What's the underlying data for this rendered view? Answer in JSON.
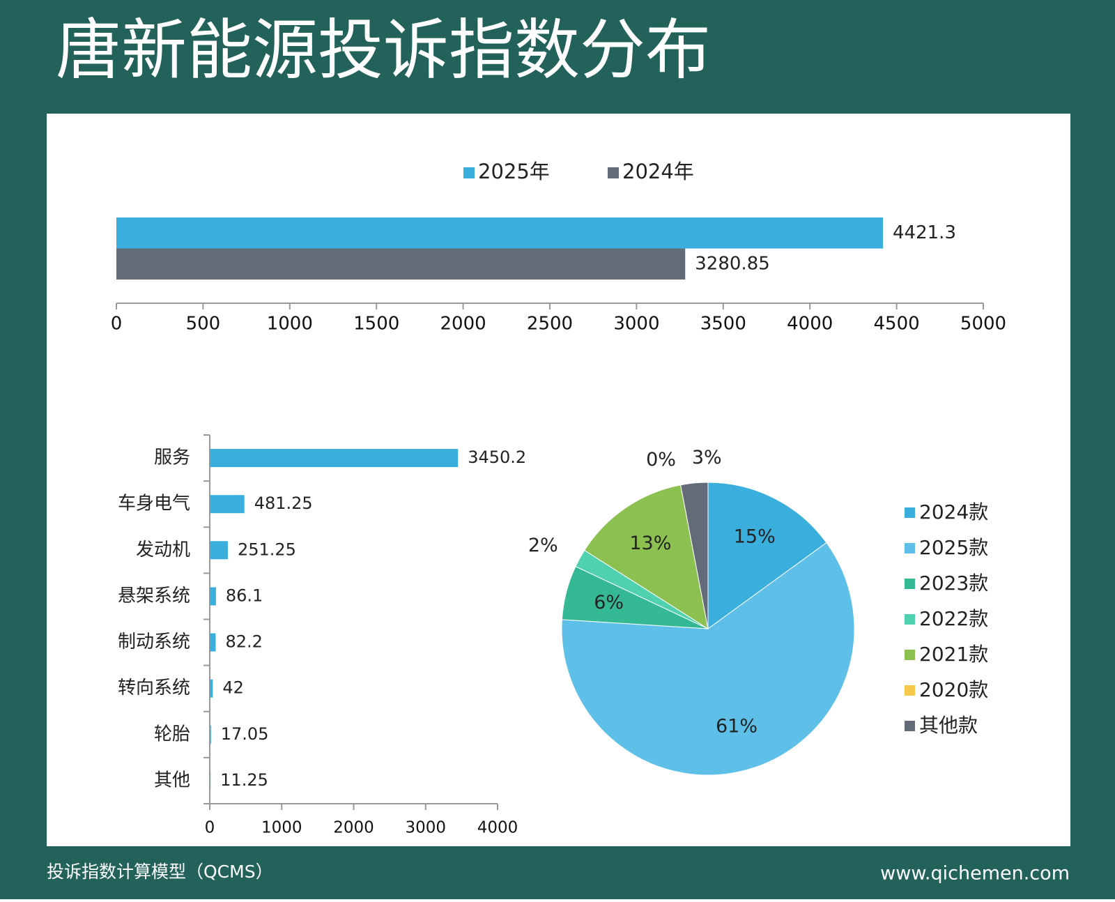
{
  "title": "唐新能源投诉指数分布",
  "footer": {
    "left": "投诉指数计算模型（QCMS）",
    "right": "www.qichemen.com"
  },
  "chart_data": [
    {
      "type": "bar",
      "orientation": "horizontal",
      "categories": [
        null
      ],
      "series": [
        {
          "name": "2025年",
          "color": "#3aaedc",
          "values": [
            4421.3
          ]
        },
        {
          "name": "2024年",
          "color": "#646b78",
          "values": [
            3280.85
          ]
        }
      ],
      "xlim": [
        0,
        5000
      ],
      "xticks": [
        0,
        500,
        1000,
        1500,
        2000,
        2500,
        3000,
        3500,
        4000,
        4500,
        5000
      ],
      "legend": "top"
    },
    {
      "type": "bar",
      "orientation": "horizontal",
      "categories": [
        "服务",
        "车身电气",
        "发动机",
        "悬架系统",
        "制动系统",
        "转向系统",
        "轮胎",
        "其他"
      ],
      "values": [
        3450.2,
        481.25,
        251.25,
        86.1,
        82.2,
        42,
        17.05,
        11.25
      ],
      "color": "#3aaedc",
      "xlim": [
        0,
        4000
      ],
      "xticks": [
        0,
        1000,
        2000,
        3000,
        4000
      ]
    },
    {
      "type": "pie",
      "labels": [
        "2024款",
        "2025款",
        "2023款",
        "2022款",
        "2021款",
        "2020款",
        "其他款"
      ],
      "values": [
        15,
        61,
        6,
        2,
        13,
        0,
        3
      ],
      "value_labels": [
        "15%",
        "61%",
        "6%",
        "2%",
        "13%",
        "0%",
        "3%"
      ],
      "colors": [
        "#3aaedc",
        "#5ec0e8",
        "#35b994",
        "#4fd1b0",
        "#8cc152",
        "#f6c94a",
        "#646b78"
      ],
      "legend": "right"
    }
  ]
}
